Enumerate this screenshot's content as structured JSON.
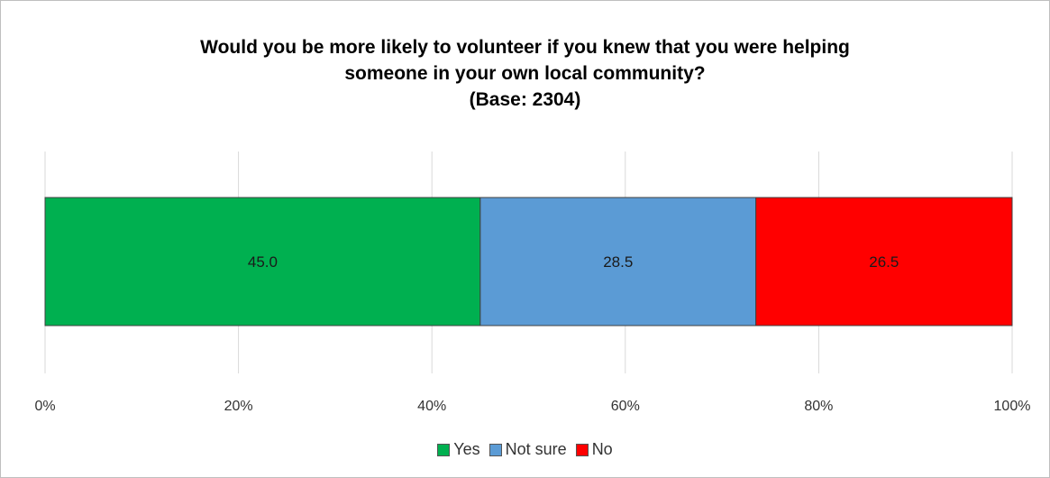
{
  "chart_data": {
    "type": "bar",
    "orientation": "horizontal",
    "stacked": true,
    "title_lines": [
      "Would you be more likely to volunteer if you knew that you were helping",
      "someone in your own local community?",
      "(Base: 2304)"
    ],
    "xlabel": "",
    "ylabel": "",
    "xlim": [
      0,
      100
    ],
    "x_ticks": [
      "0%",
      "20%",
      "40%",
      "60%",
      "80%",
      "100%"
    ],
    "grid": true,
    "legend_position": "bottom",
    "series": [
      {
        "name": "Yes",
        "value": 45.0,
        "label": "45.0",
        "color": "#00b050"
      },
      {
        "name": "Not sure",
        "value": 28.5,
        "label": "28.5",
        "color": "#5b9bd5"
      },
      {
        "name": "No",
        "value": 26.5,
        "label": "26.5",
        "color": "#ff0000"
      }
    ]
  }
}
